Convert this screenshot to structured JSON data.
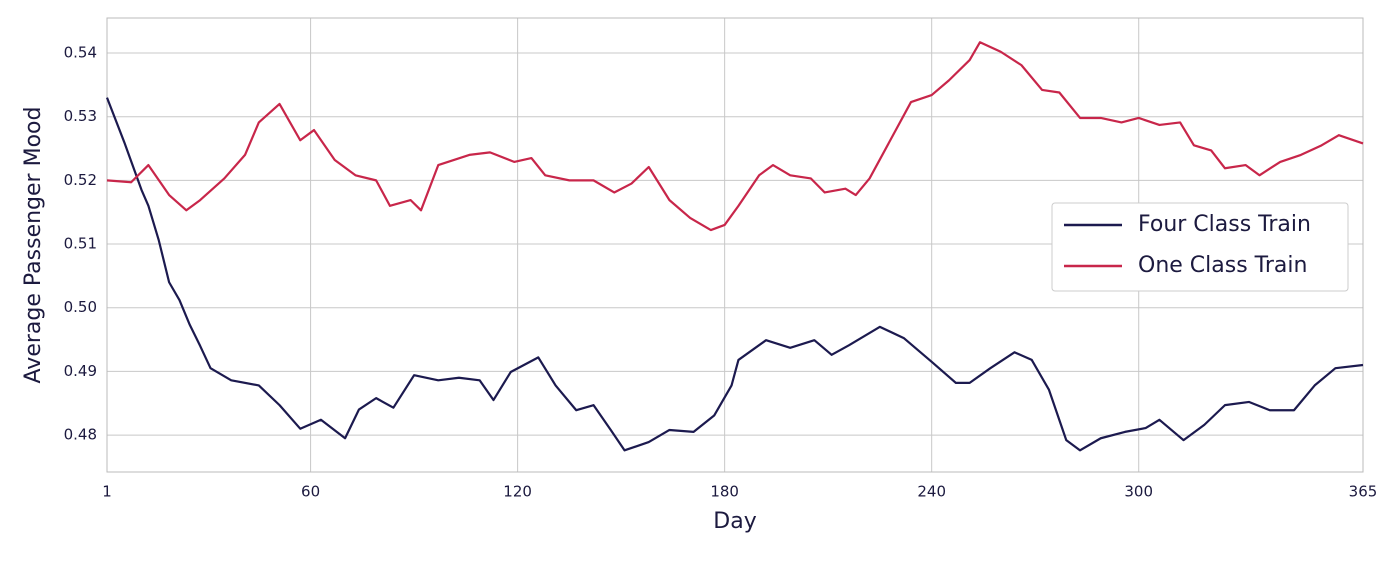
{
  "chart_data": {
    "type": "line",
    "xlabel": "Day",
    "ylabel": "Average Passenger Mood",
    "xlim": [
      1,
      365
    ],
    "xticks": [
      1,
      60,
      120,
      180,
      240,
      300,
      365
    ],
    "ylim": [
      0.4742,
      0.5455
    ],
    "yticks": [
      0.48,
      0.49,
      {
        "value": 0.5,
        "label": "0.50"
      },
      0.51,
      0.52,
      0.53,
      0.54
    ],
    "grid": true,
    "legend": "right",
    "series": [
      {
        "name": "Four Class Train",
        "color": "#1c1a4f",
        "x": [
          1,
          6,
          11,
          13,
          16,
          19,
          22,
          25,
          28,
          31,
          37,
          45,
          51,
          57,
          63,
          70,
          74,
          79,
          84,
          90,
          97,
          103,
          109,
          113,
          118,
          126,
          131,
          137,
          142,
          147,
          151,
          158,
          164,
          171,
          177,
          182,
          184,
          192,
          199,
          206,
          211,
          216,
          225,
          232,
          240,
          247,
          251,
          257,
          264,
          269,
          274,
          279,
          283,
          289,
          296,
          302,
          306,
          313,
          319,
          325,
          332,
          338,
          345,
          351,
          357,
          365
        ],
        "values": [
          0.533,
          0.526,
          0.5185,
          0.516,
          0.5106,
          0.504,
          0.5012,
          0.4973,
          0.494,
          0.4905,
          0.4886,
          0.4878,
          0.4847,
          0.481,
          0.4824,
          0.4795,
          0.484,
          0.4858,
          0.4843,
          0.4894,
          0.4886,
          0.489,
          0.4886,
          0.4855,
          0.4899,
          0.4922,
          0.4878,
          0.4839,
          0.4847,
          0.4808,
          0.4776,
          0.4789,
          0.4808,
          0.4805,
          0.4831,
          0.4878,
          0.4918,
          0.4949,
          0.4937,
          0.4949,
          0.4926,
          0.4941,
          0.497,
          0.4952,
          0.4915,
          0.4882,
          0.4882,
          0.4905,
          0.493,
          0.4918,
          0.4871,
          0.4792,
          0.4776,
          0.4795,
          0.4805,
          0.4811,
          0.4824,
          0.4792,
          0.4816,
          0.4847,
          0.4852,
          0.4839,
          0.4839,
          0.4878,
          0.4905,
          0.491
        ]
      },
      {
        "name": "One Class Train",
        "color": "#c8264a",
        "x": [
          1,
          8,
          13,
          19,
          24,
          28,
          35,
          41,
          45,
          51,
          57,
          61,
          67,
          73,
          79,
          83,
          89,
          92,
          97,
          106,
          112,
          119,
          124,
          128,
          135,
          142,
          148,
          153,
          158,
          164,
          170,
          176,
          180,
          184,
          190,
          194,
          199,
          205,
          209,
          215,
          218,
          222,
          228,
          234,
          240,
          245,
          251,
          254,
          260,
          266,
          272,
          277,
          283,
          289,
          295,
          300,
          306,
          312,
          316,
          321,
          325,
          331,
          335,
          341,
          347,
          353,
          358,
          365
        ],
        "values": [
          0.52,
          0.5197,
          0.5224,
          0.5177,
          0.5153,
          0.5169,
          0.5203,
          0.524,
          0.5291,
          0.532,
          0.5263,
          0.5279,
          0.5232,
          0.5208,
          0.52,
          0.516,
          0.5169,
          0.5153,
          0.5224,
          0.524,
          0.5244,
          0.5229,
          0.5235,
          0.5208,
          0.52,
          0.52,
          0.5181,
          0.5195,
          0.5221,
          0.5169,
          0.5141,
          0.5122,
          0.513,
          0.516,
          0.5208,
          0.5224,
          0.5208,
          0.5203,
          0.5181,
          0.5187,
          0.5177,
          0.5203,
          0.5263,
          0.5323,
          0.5334,
          0.5357,
          0.5389,
          0.5417,
          0.5402,
          0.5381,
          0.5342,
          0.5338,
          0.5298,
          0.5298,
          0.5291,
          0.5298,
          0.5287,
          0.5291,
          0.5255,
          0.5247,
          0.5219,
          0.5224,
          0.5208,
          0.5229,
          0.524,
          0.5255,
          0.5271,
          0.5258
        ]
      }
    ]
  }
}
